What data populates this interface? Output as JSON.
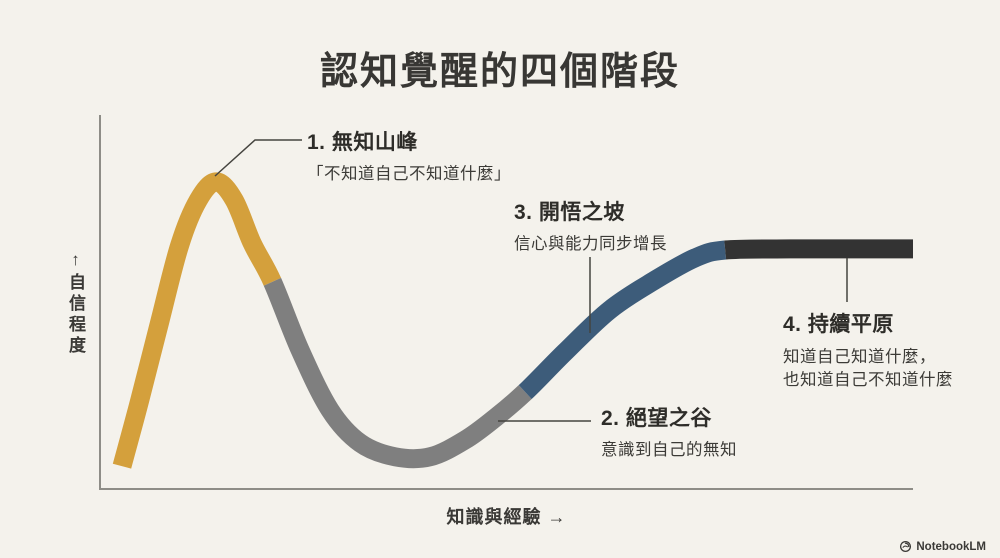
{
  "page": {
    "title": "認知覺醒的四個階段",
    "background_color": "#F4F2EC"
  },
  "axes": {
    "y_label": "↑自信程度",
    "x_label": "知識與經驗 →",
    "axis_color": "#8E8D87",
    "leader_line_color": "#45443F"
  },
  "stages": [
    {
      "title": "1. 無知山峰",
      "subtitle": "「不知道自己不知道什麼」",
      "color": "#D4A03C"
    },
    {
      "title": "2. 絕望之谷",
      "subtitle": "意識到自己的無知",
      "color": "#7F7F7F"
    },
    {
      "title": "3. 開悟之坡",
      "subtitle": "信心與能力同步增長",
      "color": "#3D5C7A"
    },
    {
      "title": "4. 持續平原",
      "subtitle_line1": "知道自己知道什麼，",
      "subtitle_line2": "也知道自己不知道什麼",
      "color": "#333333"
    }
  ],
  "footer": {
    "brand": "NotebookLM"
  },
  "chart_data": {
    "type": "line",
    "title": "認知覺醒的四個階段",
    "xlabel": "知識與經驗",
    "ylabel": "自信程度",
    "grid": false,
    "x_axis": {
      "range": [
        0,
        1
      ],
      "ticks": [],
      "arrow_in_label": true
    },
    "y_axis": {
      "range": [
        0,
        1
      ],
      "ticks": [],
      "arrow_in_label": true
    },
    "description": "Dunning-Kruger style confidence-vs-knowledge curve in four colored stages",
    "stroke_width": 19,
    "segments": [
      {
        "stage": 1,
        "name": "無知山峰",
        "color": "#D4A03C",
        "points": [
          [
            0.027,
            0.061
          ],
          [
            0.049,
            0.238
          ],
          [
            0.074,
            0.452
          ],
          [
            0.098,
            0.652
          ],
          [
            0.121,
            0.773
          ],
          [
            0.143,
            0.821
          ],
          [
            0.165,
            0.773
          ],
          [
            0.187,
            0.658
          ],
          [
            0.212,
            0.554
          ]
        ]
      },
      {
        "stage": 2,
        "name": "絕望之谷",
        "color": "#7F7F7F",
        "points": [
          [
            0.212,
            0.554
          ],
          [
            0.246,
            0.372
          ],
          [
            0.283,
            0.211
          ],
          [
            0.32,
            0.123
          ],
          [
            0.363,
            0.086
          ],
          [
            0.406,
            0.086
          ],
          [
            0.449,
            0.131
          ],
          [
            0.486,
            0.19
          ],
          [
            0.523,
            0.259
          ]
        ]
      },
      {
        "stage": 3,
        "name": "開悟之坡",
        "color": "#3D5C7A",
        "points": [
          [
            0.523,
            0.259
          ],
          [
            0.572,
            0.366
          ],
          [
            0.627,
            0.479
          ],
          [
            0.683,
            0.559
          ],
          [
            0.732,
            0.618
          ],
          [
            0.769,
            0.639
          ]
        ]
      },
      {
        "stage": 4,
        "name": "持續平原",
        "color": "#333333",
        "points": [
          [
            0.769,
            0.639
          ],
          [
            0.849,
            0.642
          ],
          [
            0.923,
            0.642
          ],
          [
            1.0,
            0.642
          ]
        ]
      }
    ],
    "annotations": [
      {
        "title": "1. 無知山峰",
        "text": "「不知道自己不知道什麼」",
        "anchor_xy": [
          0.143,
          0.84
        ]
      },
      {
        "title": "2. 絕望之谷",
        "text": "意識到自己的無知",
        "anchor_xy": [
          0.49,
          0.18
        ]
      },
      {
        "title": "3. 開悟之坡",
        "text": "信心與能力同步增長",
        "anchor_xy": [
          0.6,
          0.42
        ]
      },
      {
        "title": "4. 持續平原",
        "text": "知道自己知道什麼，也知道自己不知道什麼",
        "anchor_xy": [
          0.92,
          0.62
        ]
      }
    ]
  }
}
